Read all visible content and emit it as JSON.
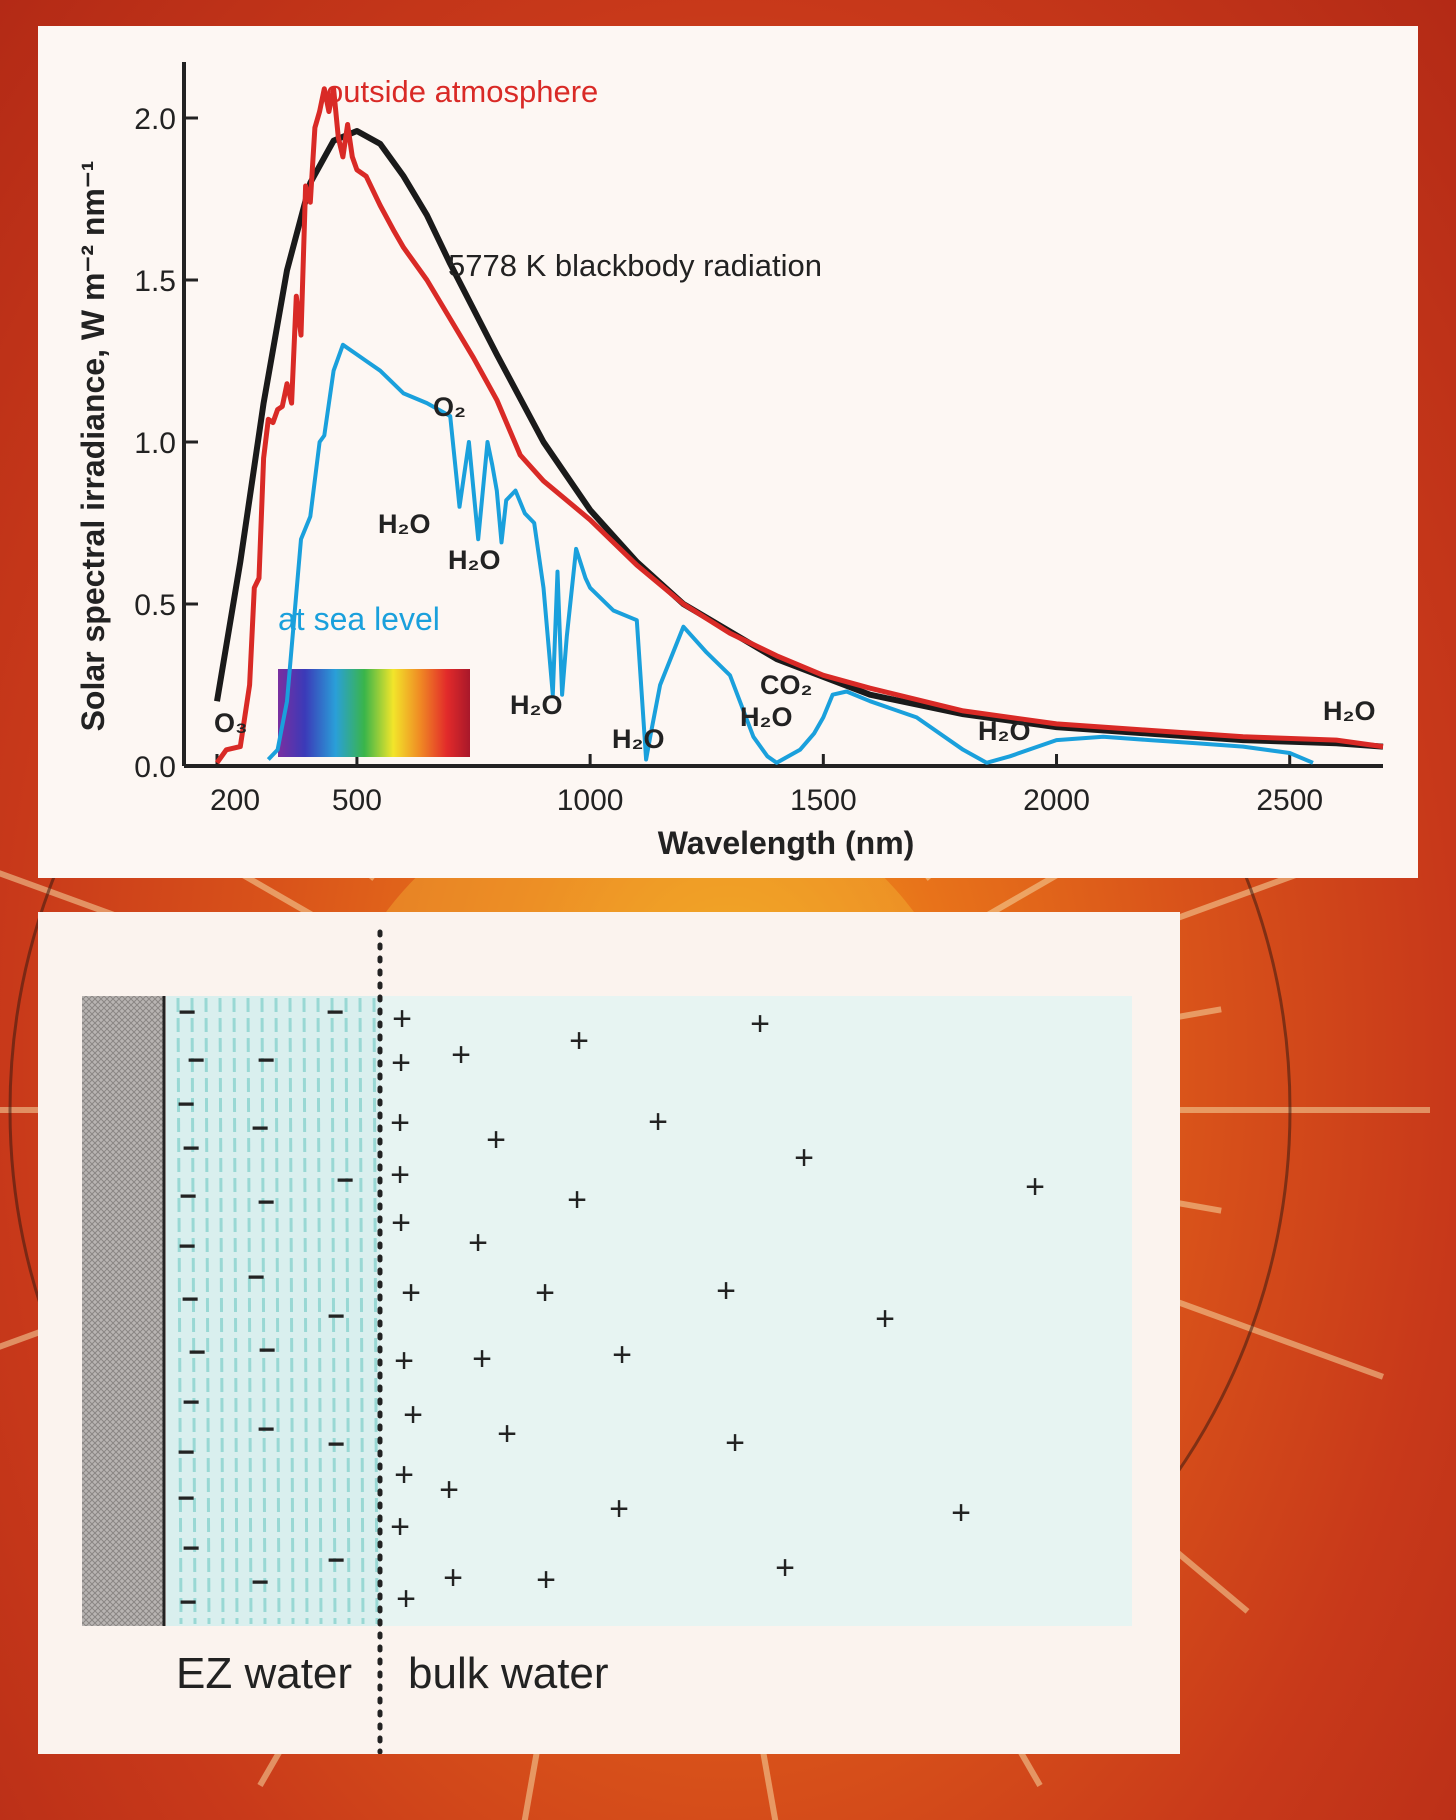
{
  "chart_data": {
    "type": "line",
    "title": "",
    "xlabel": "Wavelength (nm)",
    "ylabel": "Solar spectral irradiance, W m⁻² nm⁻¹",
    "xlim": [
      200,
      2700
    ],
    "ylim": [
      0,
      2.1
    ],
    "x_ticks": [
      200,
      500,
      1000,
      1500,
      2000,
      2500
    ],
    "x_tick_labels": [
      "200",
      "500",
      "1000",
      "1500",
      "2000",
      "2500"
    ],
    "y_ticks": [
      0,
      0.5,
      1.0,
      1.5,
      2.0
    ],
    "y_tick_labels": [
      "0.0",
      "0.5",
      "1.0",
      "1.5",
      "2.0"
    ],
    "series": [
      {
        "name": "5778 K blackbody radiation",
        "color": "#1a1a1a",
        "x": [
          200,
          250,
          300,
          350,
          400,
          450,
          500,
          550,
          600,
          650,
          700,
          800,
          900,
          1000,
          1100,
          1200,
          1400,
          1600,
          1800,
          2000,
          2200,
          2400,
          2600,
          2700
        ],
        "y": [
          0.2,
          0.63,
          1.12,
          1.53,
          1.8,
          1.93,
          1.96,
          1.92,
          1.82,
          1.7,
          1.55,
          1.27,
          1.0,
          0.79,
          0.63,
          0.5,
          0.33,
          0.22,
          0.16,
          0.12,
          0.1,
          0.08,
          0.07,
          0.06
        ]
      },
      {
        "name": "outside atmosphere",
        "color": "#d92a26",
        "x": [
          200,
          220,
          250,
          270,
          280,
          290,
          300,
          310,
          320,
          330,
          340,
          350,
          360,
          370,
          380,
          390,
          400,
          410,
          420,
          430,
          440,
          450,
          460,
          470,
          480,
          490,
          500,
          520,
          550,
          580,
          600,
          650,
          700,
          750,
          800,
          850,
          900,
          1000,
          1100,
          1200,
          1300,
          1400,
          1500,
          1600,
          1800,
          2000,
          2200,
          2400,
          2600,
          2700
        ],
        "y": [
          0.01,
          0.05,
          0.06,
          0.25,
          0.55,
          0.58,
          0.95,
          1.07,
          1.06,
          1.1,
          1.11,
          1.18,
          1.12,
          1.45,
          1.33,
          1.79,
          1.74,
          1.97,
          2.02,
          2.09,
          2.02,
          2.09,
          1.94,
          1.88,
          1.98,
          1.88,
          1.84,
          1.82,
          1.73,
          1.65,
          1.6,
          1.5,
          1.38,
          1.26,
          1.13,
          0.96,
          0.88,
          0.76,
          0.62,
          0.5,
          0.41,
          0.34,
          0.28,
          0.24,
          0.17,
          0.13,
          0.11,
          0.09,
          0.08,
          0.06
        ]
      },
      {
        "name": "at sea level",
        "color": "#1aa0dc",
        "x": [
          310,
          330,
          350,
          380,
          400,
          420,
          430,
          450,
          470,
          500,
          520,
          550,
          600,
          650,
          700,
          720,
          740,
          760,
          780,
          790,
          800,
          810,
          820,
          840,
          860,
          880,
          900,
          920,
          930,
          940,
          950,
          970,
          990,
          1000,
          1050,
          1100,
          1120,
          1130,
          1150,
          1200,
          1250,
          1300,
          1350,
          1380,
          1400,
          1450,
          1480,
          1500,
          1520,
          1550,
          1600,
          1700,
          1800,
          1850,
          1900,
          2000,
          2100,
          2200,
          2300,
          2400,
          2500,
          2550
        ],
        "y": [
          0.02,
          0.05,
          0.2,
          0.7,
          0.77,
          1.0,
          1.02,
          1.22,
          1.3,
          1.27,
          1.25,
          1.22,
          1.15,
          1.12,
          1.08,
          0.8,
          1.0,
          0.7,
          1.0,
          0.93,
          0.85,
          0.69,
          0.82,
          0.85,
          0.78,
          0.75,
          0.55,
          0.22,
          0.6,
          0.22,
          0.4,
          0.67,
          0.58,
          0.55,
          0.48,
          0.45,
          0.02,
          0.1,
          0.25,
          0.43,
          0.35,
          0.28,
          0.09,
          0.03,
          0.01,
          0.05,
          0.1,
          0.15,
          0.22,
          0.23,
          0.2,
          0.15,
          0.05,
          0.01,
          0.03,
          0.08,
          0.09,
          0.08,
          0.07,
          0.06,
          0.04,
          0.01
        ]
      }
    ],
    "annotations": [
      {
        "text": "outside atmosphere",
        "color": "#d92a26"
      },
      {
        "text": "5778 K blackbody radiation",
        "color": "#222222"
      },
      {
        "text": "at sea level",
        "color": "#1aa0dc"
      },
      {
        "text": "O₃",
        "color": "#222222"
      },
      {
        "text": "O₂",
        "color": "#222222"
      },
      {
        "text": "H₂O",
        "color": "#222222"
      },
      {
        "text": "CO₂",
        "color": "#222222"
      }
    ],
    "legend": "none",
    "grid": false
  },
  "ez_diagram": {
    "left_label": "EZ water",
    "right_label": "bulk water",
    "minus_symbol": "−",
    "plus_symbol": "+",
    "ez_tint": "#8fd4d0",
    "bulk_tint": "#e2f4f3"
  }
}
